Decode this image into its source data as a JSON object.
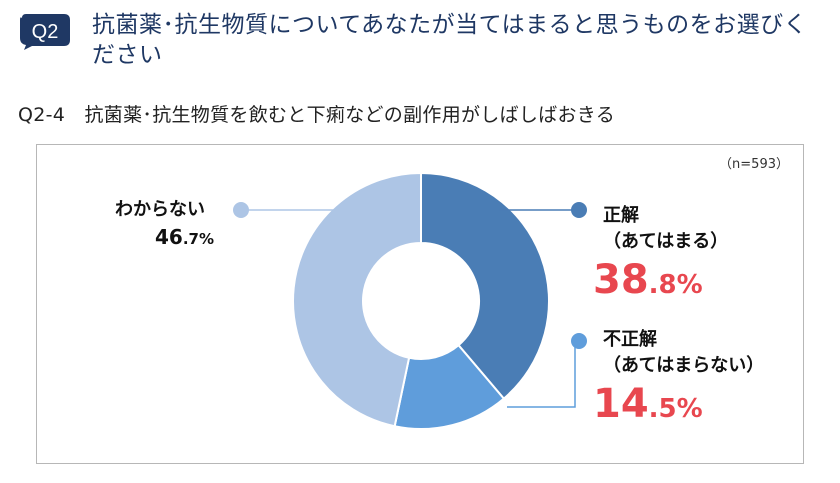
{
  "question": {
    "badge": "Q2",
    "text": "抗菌薬･抗生物質についてあなたが当てはまると思うものをお選びください"
  },
  "sub_question": "Q2-4　抗菌薬･抗生物質を飲むと下痢などの副作用がしばしばおきる",
  "sample": "（n=593）",
  "colors": {
    "correct": "#4a7db5",
    "incorrect": "#5f9ddb",
    "unknown": "#adc5e5",
    "accent": "#e8474f",
    "badge": "#1f3864"
  },
  "chart_data": {
    "type": "pie",
    "donut": true,
    "slices": [
      {
        "name": "正解",
        "sub": "（あてはまる）",
        "value": 38.8,
        "pct_int": "38",
        "pct_dec": ".8%"
      },
      {
        "name": "不正解",
        "sub": "（あてはまらない）",
        "value": 14.5,
        "pct_int": "14",
        "pct_dec": ".5%"
      },
      {
        "name": "わからない",
        "sub": "",
        "value": 46.7,
        "pct_int": "46",
        "pct_dec": ".7%"
      }
    ]
  }
}
